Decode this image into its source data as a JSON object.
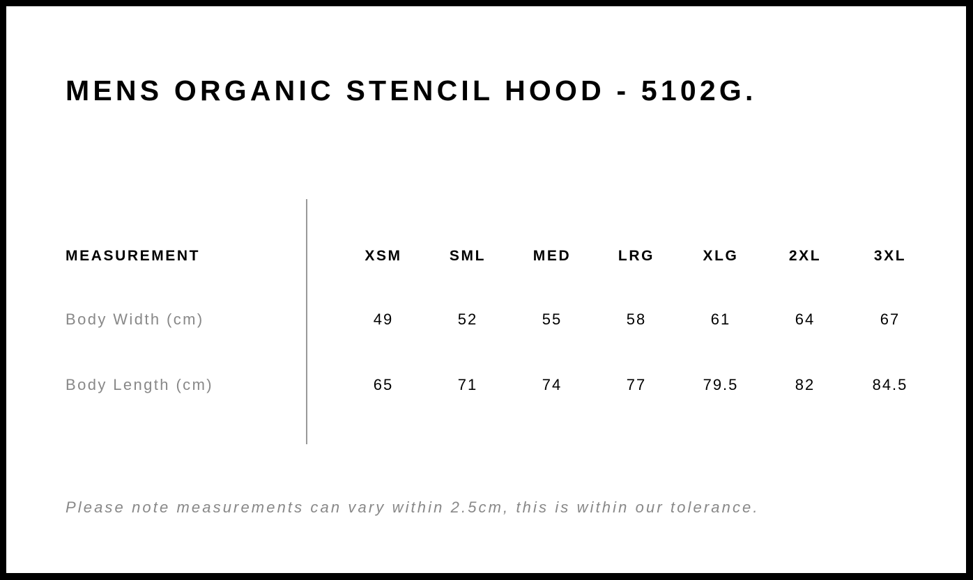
{
  "title": "MENS ORGANIC STENCIL HOOD - 5102G.",
  "table": {
    "header_label": "MEASUREMENT",
    "sizes": [
      "XSM",
      "SML",
      "MED",
      "LRG",
      "XLG",
      "2XL",
      "3XL"
    ],
    "rows": [
      {
        "label": "Body Width (cm)",
        "values": [
          "49",
          "52",
          "55",
          "58",
          "61",
          "64",
          "67"
        ]
      },
      {
        "label": "Body Length (cm)",
        "values": [
          "65",
          "71",
          "74",
          "77",
          "79.5",
          "82",
          "84.5"
        ]
      }
    ]
  },
  "note": "Please note measurements can vary within 2.5cm, this is within our tolerance."
}
